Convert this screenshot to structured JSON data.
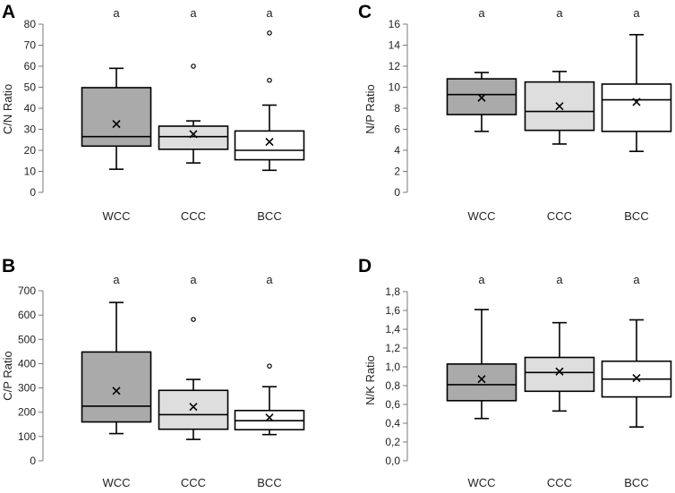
{
  "chart_data": [
    {
      "panel": "A",
      "type": "boxplot",
      "ylabel": "C/N Ratio",
      "ylim": [
        0,
        80
      ],
      "yticks": [
        "0",
        "10",
        "20",
        "30",
        "40",
        "50",
        "60",
        "70",
        "80"
      ],
      "categories": [
        "WCC",
        "CCC",
        "BCC"
      ],
      "boxes": [
        {
          "name": "WCC",
          "min": 11,
          "q1": 22,
          "median": 26.5,
          "q3": 49.8,
          "max": 59,
          "mean": 32.5,
          "outliers": [],
          "color": "#aaaaaa",
          "sig": "a"
        },
        {
          "name": "CCC",
          "min": 14,
          "q1": 20.5,
          "median": 26.5,
          "q3": 31.5,
          "max": 34,
          "mean": 27.7,
          "outliers": [
            60
          ],
          "color": "#dedede",
          "sig": "a"
        },
        {
          "name": "BCC",
          "min": 10.5,
          "q1": 15.5,
          "median": 20,
          "q3": 29.2,
          "max": 41.5,
          "mean": 24,
          "outliers": [
            53.3,
            75.8
          ],
          "color": "#ffffff",
          "sig": "a"
        }
      ]
    },
    {
      "panel": "C",
      "type": "boxplot",
      "ylabel": "N/P Ratio",
      "ylim": [
        0,
        16
      ],
      "yticks": [
        "0",
        "2",
        "4",
        "6",
        "8",
        "10",
        "12",
        "14",
        "16"
      ],
      "categories": [
        "WCC",
        "CCC",
        "BCC"
      ],
      "boxes": [
        {
          "name": "WCC",
          "min": 5.8,
          "q1": 7.4,
          "median": 9.3,
          "q3": 10.8,
          "max": 11.4,
          "mean": 9.0,
          "outliers": [],
          "color": "#aaaaaa",
          "sig": "a"
        },
        {
          "name": "CCC",
          "min": 4.6,
          "q1": 5.9,
          "median": 7.7,
          "q3": 10.5,
          "max": 11.5,
          "mean": 8.2,
          "outliers": [],
          "color": "#dedede",
          "sig": "a"
        },
        {
          "name": "BCC",
          "min": 3.9,
          "q1": 5.8,
          "median": 8.8,
          "q3": 10.3,
          "max": 15.0,
          "mean": 8.6,
          "outliers": [],
          "color": "#ffffff",
          "sig": "a"
        }
      ]
    },
    {
      "panel": "B",
      "type": "boxplot",
      "ylabel": "C/P Ratio",
      "ylim": [
        0,
        700
      ],
      "yticks": [
        "0",
        "100",
        "200",
        "300",
        "400",
        "500",
        "600",
        "700"
      ],
      "categories": [
        "WCC",
        "CCC",
        "BCC"
      ],
      "boxes": [
        {
          "name": "WCC",
          "min": 112,
          "q1": 160,
          "median": 225,
          "q3": 448,
          "max": 652,
          "mean": 288,
          "outliers": [],
          "color": "#aaaaaa",
          "sig": "a"
        },
        {
          "name": "CCC",
          "min": 88,
          "q1": 130,
          "median": 190,
          "q3": 290,
          "max": 335,
          "mean": 222,
          "outliers": [
            582
          ],
          "color": "#dedede",
          "sig": "a"
        },
        {
          "name": "BCC",
          "min": 108,
          "q1": 128,
          "median": 165,
          "q3": 207,
          "max": 305,
          "mean": 178,
          "outliers": [
            390
          ],
          "color": "#ffffff",
          "sig": "a"
        }
      ]
    },
    {
      "panel": "D",
      "type": "boxplot",
      "ylabel": "N/K Ratio",
      "ylim": [
        0,
        1.8
      ],
      "yticks": [
        "0,0",
        "0,2",
        "0,4",
        "0,6",
        "0,8",
        "1,0",
        "1,2",
        "1,4",
        "1,6",
        "1,8"
      ],
      "categories": [
        "WCC",
        "CCC",
        "BCC"
      ],
      "boxes": [
        {
          "name": "WCC",
          "min": 0.45,
          "q1": 0.64,
          "median": 0.81,
          "q3": 1.03,
          "max": 1.61,
          "mean": 0.87,
          "outliers": [],
          "color": "#aaaaaa",
          "sig": "a"
        },
        {
          "name": "CCC",
          "min": 0.53,
          "q1": 0.74,
          "median": 0.94,
          "q3": 1.1,
          "max": 1.47,
          "mean": 0.95,
          "outliers": [],
          "color": "#dedede",
          "sig": "a"
        },
        {
          "name": "BCC",
          "min": 0.36,
          "q1": 0.68,
          "median": 0.87,
          "q3": 1.06,
          "max": 1.5,
          "mean": 0.88,
          "outliers": [],
          "color": "#ffffff",
          "sig": "a"
        }
      ]
    }
  ]
}
